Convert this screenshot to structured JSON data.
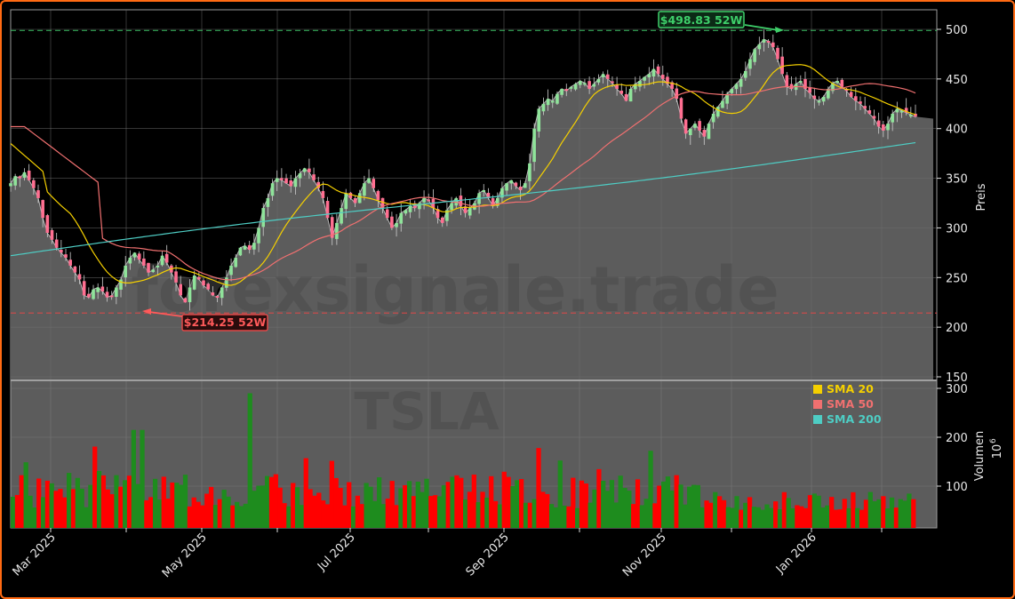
{
  "chart_data": [
    {
      "type": "candlestick",
      "ticker": "TSLA",
      "watermark": "forexsignale.trade",
      "ylabel": "Preis",
      "ylim": [
        145,
        520
      ],
      "yticks": [
        150,
        200,
        250,
        300,
        350,
        400,
        450,
        500
      ],
      "xlabel": "",
      "xtick_labels": [
        "Mar 2025",
        "May 2025",
        "Jul 2025",
        "Sep 2025",
        "Nov 2025",
        "Jan 2026"
      ],
      "grid": true,
      "annotations": [
        {
          "label": "$498.83 52W",
          "value": 498.83,
          "type": "52-week high",
          "color": "#3ecf6a"
        },
        {
          "label": "$214.25 52W",
          "value": 214.25,
          "type": "52-week low",
          "color": "#ff4d4d"
        }
      ],
      "legend": [
        {
          "label": "SMA 20",
          "color": "#f5d000"
        },
        {
          "label": "SMA 50",
          "color": "#f07070"
        },
        {
          "label": "SMA 200",
          "color": "#4ecdc4"
        }
      ],
      "legend_position": "lower right of price panel / upper right of volume panel",
      "close_series_approx": [
        345,
        352,
        350,
        356,
        348,
        340,
        330,
        310,
        295,
        288,
        280,
        275,
        270,
        262,
        255,
        248,
        232,
        230,
        238,
        240,
        236,
        230,
        232,
        240,
        248,
        262,
        270,
        275,
        268,
        262,
        255,
        258,
        262,
        272,
        265,
        255,
        245,
        232,
        225,
        240,
        252,
        248,
        242,
        238,
        232,
        230,
        240,
        250,
        262,
        270,
        280,
        282,
        278,
        285,
        300,
        320,
        330,
        345,
        350,
        348,
        345,
        342,
        350,
        355,
        360,
        356,
        348,
        340,
        330,
        310,
        290,
        305,
        320,
        335,
        330,
        325,
        335,
        345,
        350,
        340,
        328,
        320,
        310,
        300,
        305,
        315,
        318,
        322,
        320,
        325,
        330,
        328,
        320,
        310,
        305,
        318,
        325,
        330,
        322,
        315,
        320,
        325,
        335,
        338,
        330,
        322,
        330,
        340,
        345,
        348,
        342,
        338,
        345,
        365,
        400,
        420,
        425,
        430,
        428,
        435,
        440,
        438,
        442,
        445,
        448,
        446,
        440,
        445,
        450,
        455,
        450,
        446,
        440,
        435,
        428,
        440,
        445,
        448,
        452,
        455,
        460,
        455,
        450,
        445,
        440,
        430,
        410,
        395,
        400,
        405,
        398,
        392,
        405,
        415,
        422,
        428,
        435,
        440,
        445,
        450,
        458,
        470,
        480,
        485,
        490,
        488,
        482,
        470,
        455,
        442,
        440,
        445,
        448,
        440,
        436,
        430,
        428,
        432,
        440,
        446,
        448,
        442,
        438,
        432,
        428,
        425,
        420,
        415,
        410,
        402,
        398,
        405,
        415,
        420,
        418,
        416,
        414,
        412
      ],
      "sma20_end": 422,
      "sma50_end": 445,
      "sma200_end": 385
    },
    {
      "type": "bar",
      "ylabel": "Volumen",
      "yunit": "10^6",
      "yticks": [
        100,
        200,
        300
      ],
      "ylim": [
        15,
        310
      ],
      "colors": {
        "up": "#1e8c1e",
        "down": "#ff0000"
      },
      "peak_value": 290,
      "typical_range": [
        50,
        200
      ]
    }
  ],
  "labels": {
    "price_axis_title": "Preis",
    "volume_axis_title": "Volumen",
    "volume_unit": "10",
    "volume_unit_exp": "6",
    "ticker_watermark": "TSLA",
    "site_watermark": "forexsignale.trade",
    "high_label": "$498.83 52W",
    "low_label": "$214.25 52W",
    "legend_sma20": "SMA 20",
    "legend_sma50": "SMA 50",
    "legend_sma200": "SMA 200"
  },
  "colors": {
    "frame": "#ff6a13",
    "background": "#000000",
    "area_fill": "#5c5c5c",
    "area_line": "#b8b8b8",
    "candle_up": "#8fe39a",
    "candle_down": "#ff6f91",
    "sma20": "#f5d000",
    "sma50": "#f07070",
    "sma200": "#4ecdc4",
    "high_line": "#3ecf6a",
    "low_line": "#e04848",
    "vol_up": "#1e8c1e",
    "vol_down": "#ff0000",
    "grid": "#6e6e6e"
  }
}
